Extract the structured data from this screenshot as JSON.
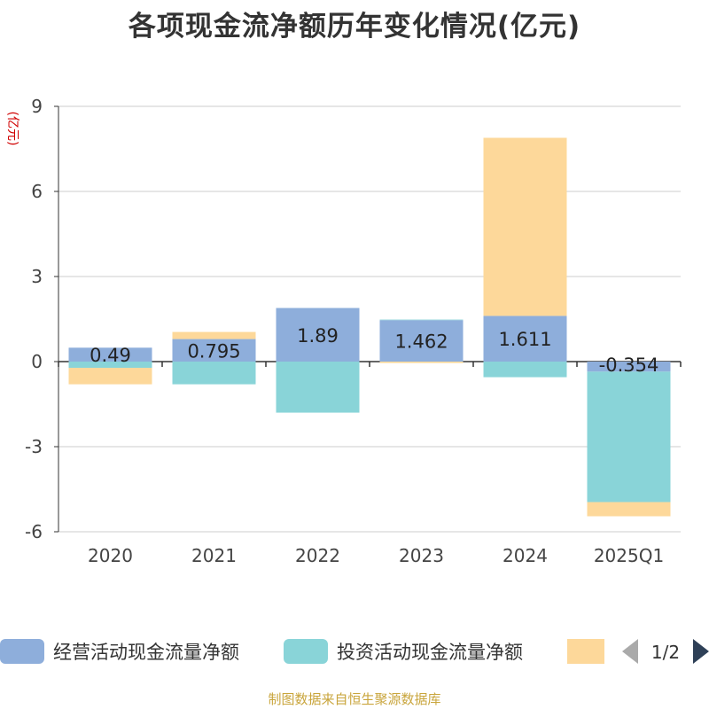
{
  "chart_data": {
    "type": "bar",
    "stacked": true,
    "title": "各项现金流净额历年变化情况(亿元)",
    "ylabel": "(亿元)",
    "ylim": [
      -6,
      9
    ],
    "yticks": [
      9,
      6,
      3,
      0,
      -3,
      -6
    ],
    "categories": [
      "2020",
      "2021",
      "2022",
      "2023",
      "2024",
      "2025Q1"
    ],
    "series": [
      {
        "name": "经营活动现金流量净额",
        "color": "#8eaedb",
        "values": [
          0.49,
          0.795,
          1.89,
          1.462,
          1.611,
          -0.354
        ]
      },
      {
        "name": "投资活动现金流量净额",
        "color": "#89d4d8",
        "values": [
          -0.22,
          -0.8,
          -1.8,
          0.02,
          -0.55,
          -4.6
        ]
      },
      {
        "name": "",
        "color": "#fdd89a",
        "values": [
          -0.58,
          0.25,
          0.0,
          -0.05,
          6.28,
          -0.5
        ]
      }
    ],
    "data_labels": [
      "0.49",
      "0.795",
      "1.89",
      "1.462",
      "1.611",
      "-0.354"
    ],
    "legend_position": "bottom",
    "grid": true
  },
  "legend": {
    "page": "1/2"
  },
  "source": "制图数据来自恒生聚源数据库"
}
